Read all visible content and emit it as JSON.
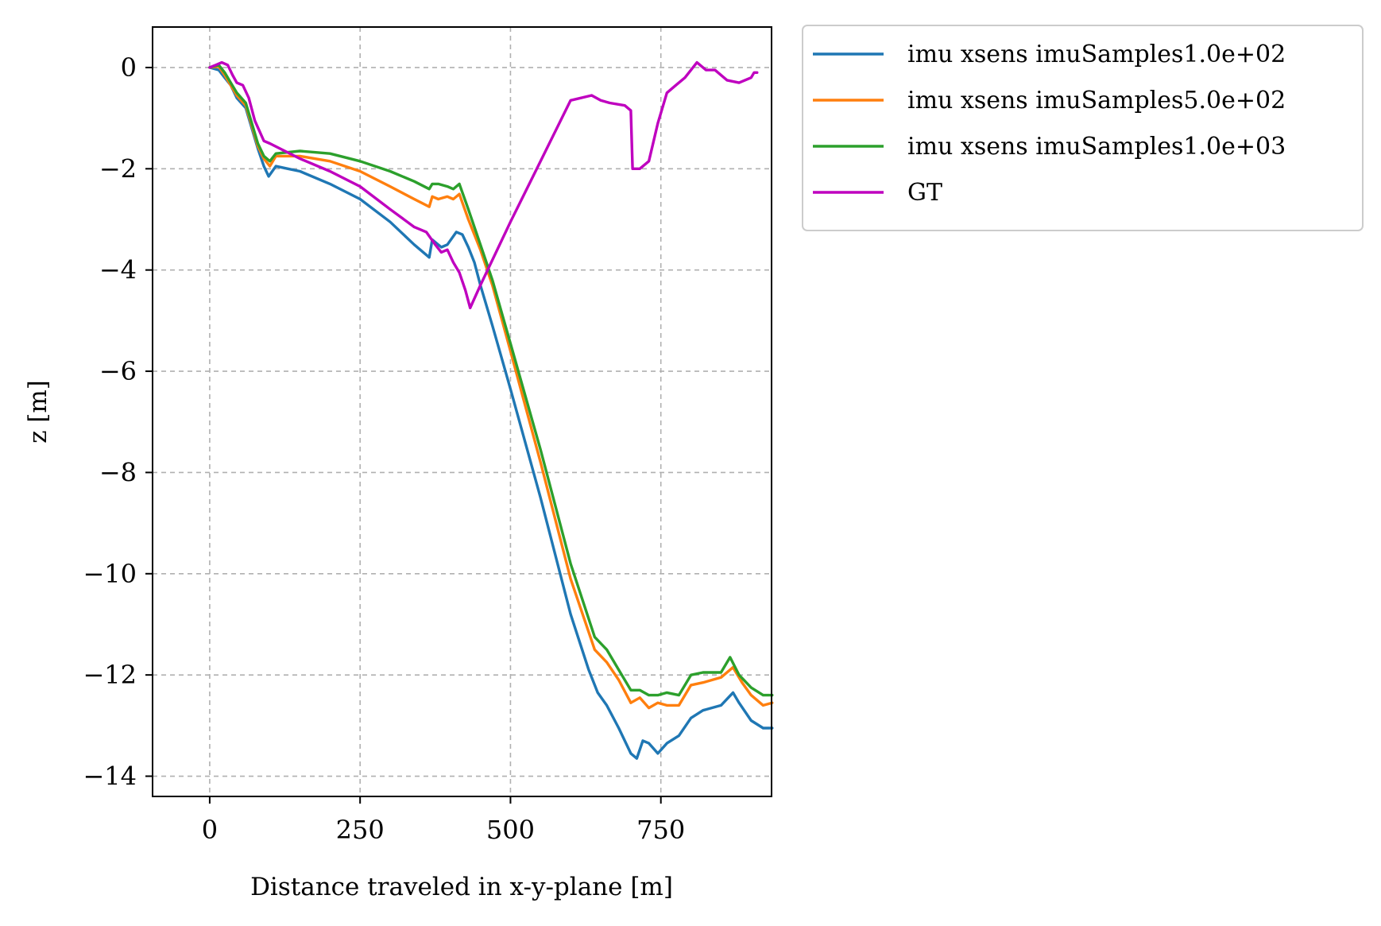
{
  "chart_data": {
    "type": "line",
    "xlabel": "Distance traveled in x-y-plane [m]",
    "ylabel": "z [m]",
    "xlim": [
      -95,
      1963
    ],
    "ylim": [
      -14.4,
      0.8
    ],
    "xticks": [
      0,
      250,
      500,
      750
    ],
    "yticks": [
      0,
      -2,
      -4,
      -6,
      -8,
      -10,
      -12,
      -14
    ],
    "xtick_labels": [
      "0",
      "250",
      "500",
      "750"
    ],
    "ytick_labels": [
      "0",
      "−2",
      "−4",
      "−6",
      "−8",
      "−10",
      "−12",
      "−14"
    ],
    "grid": true,
    "legend_position": "outside-top-right",
    "series": [
      {
        "name": "imu xsens imuSamples1.0e+02",
        "color": "#1f77b4",
        "x": [
          0,
          15,
          25,
          35,
          45,
          60,
          70,
          80,
          90,
          98,
          110,
          130,
          150,
          200,
          250,
          300,
          340,
          365,
          370,
          385,
          395,
          410,
          420,
          430,
          440,
          450,
          470,
          500,
          550,
          600,
          630,
          645,
          660,
          680,
          700,
          710,
          720,
          730,
          745,
          760,
          780,
          800,
          820,
          850,
          870,
          880,
          900,
          920,
          935
        ],
        "y": [
          0,
          -0.05,
          -0.2,
          -0.35,
          -0.6,
          -0.8,
          -1.2,
          -1.6,
          -1.95,
          -2.15,
          -1.95,
          -2.0,
          -2.05,
          -2.3,
          -2.6,
          -3.05,
          -3.5,
          -3.75,
          -3.4,
          -3.55,
          -3.5,
          -3.25,
          -3.3,
          -3.55,
          -3.85,
          -4.3,
          -5.1,
          -6.35,
          -8.5,
          -10.8,
          -11.9,
          -12.35,
          -12.6,
          -13.05,
          -13.55,
          -13.65,
          -13.3,
          -13.35,
          -13.55,
          -13.35,
          -13.2,
          -12.85,
          -12.7,
          -12.6,
          -12.35,
          -12.55,
          -12.9,
          -13.05,
          -13.05
        ]
      },
      {
        "name": "imu xsens imuSamples5.0e+02",
        "color": "#ff7f0e",
        "x": [
          0,
          15,
          25,
          35,
          45,
          60,
          70,
          80,
          90,
          100,
          110,
          150,
          200,
          250,
          300,
          340,
          365,
          370,
          380,
          395,
          405,
          415,
          430,
          450,
          470,
          500,
          550,
          600,
          640,
          660,
          680,
          700,
          715,
          730,
          745,
          760,
          780,
          800,
          820,
          850,
          870,
          885,
          900,
          920,
          935
        ],
        "y": [
          0,
          0.02,
          -0.15,
          -0.35,
          -0.55,
          -0.75,
          -1.15,
          -1.55,
          -1.8,
          -1.95,
          -1.75,
          -1.75,
          -1.85,
          -2.05,
          -2.35,
          -2.6,
          -2.75,
          -2.55,
          -2.6,
          -2.55,
          -2.6,
          -2.5,
          -3.0,
          -3.6,
          -4.3,
          -5.6,
          -7.8,
          -10.1,
          -11.5,
          -11.75,
          -12.1,
          -12.55,
          -12.45,
          -12.65,
          -12.55,
          -12.6,
          -12.6,
          -12.2,
          -12.15,
          -12.05,
          -11.85,
          -12.15,
          -12.4,
          -12.6,
          -12.55
        ]
      },
      {
        "name": "imu xsens imuSamples1.0e+03",
        "color": "#2ca02c",
        "x": [
          0,
          15,
          25,
          35,
          45,
          60,
          70,
          80,
          90,
          100,
          110,
          150,
          200,
          250,
          300,
          340,
          365,
          370,
          380,
          395,
          405,
          415,
          430,
          450,
          470,
          500,
          550,
          600,
          640,
          660,
          680,
          700,
          715,
          730,
          745,
          760,
          780,
          800,
          820,
          850,
          865,
          880,
          900,
          920,
          935
        ],
        "y": [
          0,
          0.05,
          -0.1,
          -0.3,
          -0.5,
          -0.7,
          -1.1,
          -1.5,
          -1.75,
          -1.85,
          -1.7,
          -1.65,
          -1.7,
          -1.85,
          -2.05,
          -2.25,
          -2.4,
          -2.3,
          -2.3,
          -2.35,
          -2.4,
          -2.3,
          -2.8,
          -3.5,
          -4.2,
          -5.45,
          -7.55,
          -9.8,
          -11.25,
          -11.5,
          -11.9,
          -12.3,
          -12.3,
          -12.4,
          -12.4,
          -12.35,
          -12.4,
          -12.0,
          -11.95,
          -11.95,
          -11.65,
          -12.0,
          -12.25,
          -12.4,
          -12.4
        ]
      },
      {
        "name": "GT",
        "color": "#bf00bf",
        "x": [
          0,
          10,
          20,
          30,
          38,
          45,
          55,
          65,
          75,
          90,
          100,
          150,
          200,
          250,
          300,
          340,
          360,
          375,
          385,
          395,
          405,
          415,
          425,
          433,
          450,
          500,
          550,
          600,
          635,
          650,
          665,
          690,
          700,
          703,
          715,
          730,
          745,
          760,
          775,
          790,
          810,
          825,
          840,
          860,
          880,
          900,
          905,
          910
        ],
        "y": [
          0,
          0.05,
          0.1,
          0.05,
          -0.15,
          -0.3,
          -0.35,
          -0.6,
          -1.05,
          -1.45,
          -1.5,
          -1.8,
          -2.05,
          -2.35,
          -2.8,
          -3.15,
          -3.25,
          -3.5,
          -3.65,
          -3.6,
          -3.85,
          -4.05,
          -4.4,
          -4.75,
          -4.3,
          -3.05,
          -1.85,
          -0.65,
          -0.55,
          -0.65,
          -0.7,
          -0.75,
          -0.85,
          -2.0,
          -2.0,
          -1.85,
          -1.1,
          -0.5,
          -0.35,
          -0.2,
          0.1,
          -0.05,
          -0.05,
          -0.25,
          -0.3,
          -0.2,
          -0.1,
          -0.1
        ]
      }
    ]
  }
}
